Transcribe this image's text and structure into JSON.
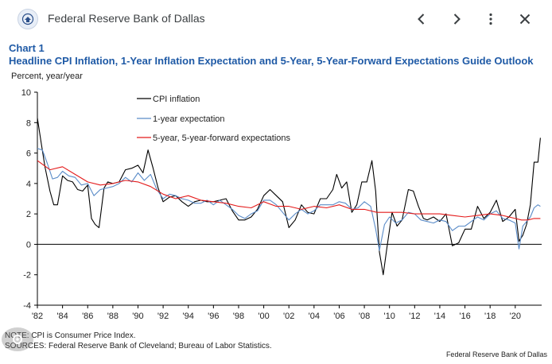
{
  "header": {
    "site_name": "Federal Reserve Bank of Dallas",
    "logo_icon": "federal-reserve-seal-icon",
    "back_icon": "chevron-left-icon",
    "forward_icon": "chevron-right-icon",
    "more_icon": "more-vertical-icon",
    "close_icon": "close-icon"
  },
  "figure": {
    "label": "Chart 1",
    "title": "Headline CPI Inflation, 1-Year Inflation Expectation and 5-Year, 5-Year-Forward Expectations Guide Outlook",
    "ylabel": "Percent, year/year",
    "note1": "NOTE: CPI is Consumer Price Index.",
    "note2": "SOURCES: Federal Reserve Bank of Cleveland; Bureau of Labor Statistics.",
    "credit": "Federal Reserve Bank of Dallas"
  },
  "chart_data": {
    "type": "line",
    "ylim": [
      -4,
      10
    ],
    "yticks": [
      "10",
      "8",
      "6",
      "4",
      "2",
      "0",
      "-2",
      "-4"
    ],
    "xlim": [
      1982,
      2022.1
    ],
    "xticks": [
      "'82",
      "'84",
      "'86",
      "'88",
      "'90",
      "'92",
      "'94",
      "'96",
      "'98",
      "'00",
      "'02",
      "'04",
      "'06",
      "'08",
      "'10",
      "'12",
      "'14",
      "'16",
      "'18",
      "'20"
    ],
    "legend_position": "top-center",
    "grid": false,
    "series": [
      {
        "name": "CPI inflation",
        "color": "#000000",
        "x": [
          1982.0,
          1982.3,
          1982.6,
          1983.0,
          1983.3,
          1983.6,
          1984.0,
          1984.4,
          1984.8,
          1985.2,
          1985.6,
          1986.0,
          1986.3,
          1986.6,
          1986.9,
          1987.3,
          1987.6,
          1988.0,
          1988.5,
          1989.0,
          1989.5,
          1990.0,
          1990.4,
          1990.8,
          1991.2,
          1991.6,
          1992.0,
          1992.5,
          1993.0,
          1993.5,
          1994.0,
          1994.5,
          1995.0,
          1995.5,
          1996.0,
          1996.5,
          1997.0,
          1997.5,
          1998.0,
          1998.5,
          1999.0,
          1999.5,
          2000.0,
          2000.5,
          2001.0,
          2001.5,
          2002.0,
          2002.5,
          2003.0,
          2003.5,
          2004.0,
          2004.5,
          2005.0,
          2005.5,
          2005.8,
          2006.2,
          2006.6,
          2007.0,
          2007.4,
          2007.8,
          2008.2,
          2008.6,
          2008.9,
          2009.2,
          2009.5,
          2009.8,
          2010.2,
          2010.6,
          2011.0,
          2011.5,
          2011.9,
          2012.3,
          2012.7,
          2013.0,
          2013.5,
          2014.0,
          2014.5,
          2015.0,
          2015.5,
          2016.0,
          2016.5,
          2017.0,
          2017.5,
          2018.0,
          2018.5,
          2019.0,
          2019.5,
          2020.0,
          2020.3,
          2020.6,
          2020.9,
          2021.2,
          2021.5,
          2021.8,
          2022.0
        ],
        "y": [
          8.3,
          6.7,
          5.1,
          3.5,
          2.6,
          2.6,
          4.5,
          4.2,
          4.1,
          3.6,
          3.5,
          3.9,
          1.7,
          1.3,
          1.1,
          3.7,
          4.1,
          4.0,
          4.1,
          4.9,
          5.0,
          5.2,
          4.7,
          6.2,
          5.0,
          3.7,
          2.8,
          3.1,
          3.2,
          2.8,
          2.5,
          2.8,
          2.9,
          2.8,
          2.8,
          2.9,
          3.0,
          2.2,
          1.6,
          1.6,
          1.8,
          2.3,
          3.2,
          3.6,
          3.2,
          2.8,
          1.1,
          1.6,
          2.6,
          2.1,
          2.0,
          3.0,
          3.0,
          3.6,
          4.6,
          3.7,
          4.1,
          2.1,
          2.6,
          4.1,
          4.1,
          5.5,
          3.5,
          -0.5,
          -2.0,
          -0.2,
          2.1,
          1.2,
          1.6,
          3.6,
          3.5,
          2.5,
          1.7,
          1.6,
          1.8,
          1.5,
          2.0,
          -0.1,
          0.1,
          1.0,
          1.0,
          2.5,
          1.7,
          2.1,
          2.9,
          1.5,
          1.8,
          2.3,
          0.2,
          0.6,
          1.3,
          2.6,
          5.4,
          5.4,
          7.0
        ]
      },
      {
        "name": "1-year expectation",
        "color": "#5b8cc8",
        "x": [
          1982.0,
          1982.4,
          1982.8,
          1983.2,
          1983.6,
          1984.0,
          1984.5,
          1985.0,
          1985.5,
          1986.0,
          1986.5,
          1987.0,
          1987.5,
          1988.0,
          1988.5,
          1989.0,
          1989.5,
          1990.0,
          1990.5,
          1991.0,
          1991.5,
          1992.0,
          1992.5,
          1993.0,
          1993.5,
          1994.0,
          1994.5,
          1995.0,
          1995.5,
          1996.0,
          1996.5,
          1997.0,
          1997.5,
          1998.0,
          1998.5,
          1999.0,
          1999.5,
          2000.0,
          2000.5,
          2001.0,
          2001.5,
          2002.0,
          2002.5,
          2003.0,
          2003.5,
          2004.0,
          2004.5,
          2005.0,
          2005.5,
          2006.0,
          2006.5,
          2007.0,
          2007.5,
          2008.0,
          2008.5,
          2008.9,
          2009.2,
          2009.6,
          2010.0,
          2010.5,
          2011.0,
          2011.5,
          2012.0,
          2012.5,
          2013.0,
          2013.5,
          2014.0,
          2014.5,
          2015.0,
          2015.5,
          2016.0,
          2016.5,
          2017.0,
          2017.5,
          2018.0,
          2018.5,
          2019.0,
          2019.5,
          2020.0,
          2020.3,
          2020.6,
          2020.9,
          2021.2,
          2021.5,
          2021.8,
          2022.0
        ],
        "y": [
          6.3,
          6.2,
          5.3,
          4.3,
          4.4,
          4.8,
          4.5,
          4.4,
          3.9,
          4.0,
          3.2,
          3.6,
          3.7,
          3.8,
          4.0,
          4.4,
          4.1,
          4.7,
          4.2,
          4.6,
          3.6,
          3.0,
          3.3,
          3.2,
          3.0,
          2.9,
          2.7,
          2.7,
          2.9,
          2.6,
          2.9,
          2.6,
          2.3,
          1.9,
          1.7,
          2.0,
          2.2,
          2.9,
          2.9,
          2.6,
          2.1,
          1.6,
          2.0,
          2.3,
          2.0,
          2.2,
          2.6,
          2.6,
          2.6,
          2.8,
          2.7,
          2.3,
          2.4,
          2.8,
          2.5,
          1.0,
          -0.4,
          1.3,
          1.8,
          1.4,
          1.6,
          2.1,
          2.0,
          1.6,
          1.5,
          1.4,
          1.6,
          1.5,
          0.9,
          1.2,
          1.2,
          1.5,
          1.8,
          1.6,
          2.0,
          2.2,
          1.7,
          1.6,
          1.4,
          -0.3,
          1.2,
          1.5,
          1.8,
          2.4,
          2.6,
          2.5
        ]
      },
      {
        "name": "5-year, 5-year-forward expectations",
        "color": "#e41b1b",
        "x": [
          1982.0,
          1983.0,
          1984.0,
          1985.0,
          1986.0,
          1987.0,
          1988.0,
          1989.0,
          1990.0,
          1991.0,
          1992.0,
          1993.0,
          1994.0,
          1995.0,
          1996.0,
          1997.0,
          1998.0,
          1999.0,
          2000.0,
          2001.0,
          2002.0,
          2003.0,
          2004.0,
          2005.0,
          2006.0,
          2007.0,
          2008.0,
          2009.0,
          2010.0,
          2011.0,
          2012.0,
          2013.0,
          2014.0,
          2015.0,
          2016.0,
          2017.0,
          2018.0,
          2019.0,
          2020.0,
          2020.5,
          2021.0,
          2021.5,
          2022.0
        ],
        "y": [
          5.5,
          4.9,
          5.1,
          4.6,
          4.1,
          3.9,
          4.0,
          4.2,
          4.1,
          3.8,
          3.3,
          3.0,
          3.2,
          2.9,
          2.8,
          2.7,
          2.5,
          2.4,
          2.8,
          2.5,
          2.5,
          2.3,
          2.5,
          2.4,
          2.6,
          2.3,
          2.3,
          2.1,
          2.1,
          2.1,
          2.0,
          2.0,
          2.0,
          1.9,
          1.8,
          1.9,
          2.0,
          1.9,
          1.7,
          1.6,
          1.6,
          1.7,
          1.7
        ]
      }
    ]
  }
}
